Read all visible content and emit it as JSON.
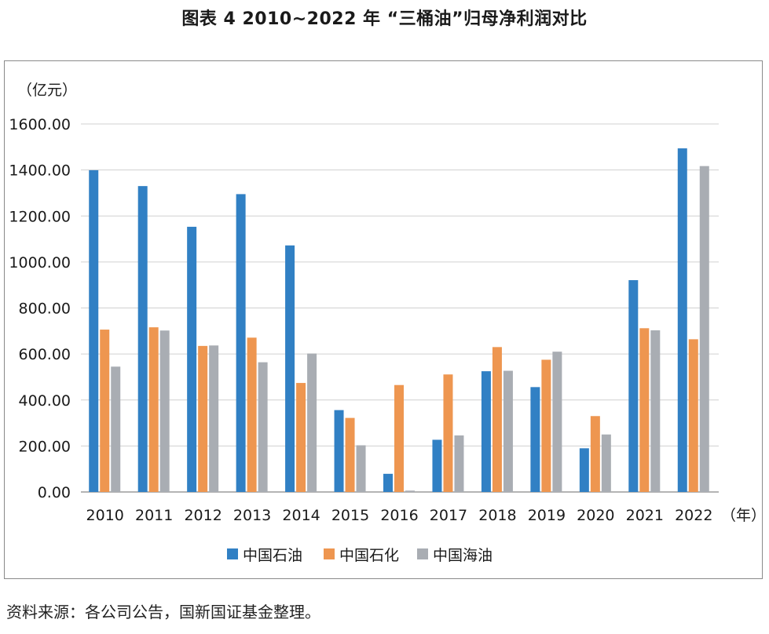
{
  "title": "图表 4  2010~2022 年 “三桶油”归母净利润对比",
  "source": "资料来源：各公司公告，国新国证基金整理。",
  "colors": {
    "series": [
      "#3180C4",
      "#EE9650",
      "#A9ADB3"
    ],
    "grid": "#d0d0d0",
    "axis": "#888888"
  },
  "chart_data": {
    "type": "bar",
    "ylabel": "（亿元）",
    "xlabel": "（年）",
    "ylim": [
      0,
      1600
    ],
    "yticks": [
      0,
      200,
      400,
      600,
      800,
      1000,
      1200,
      1400,
      1600
    ],
    "ytick_labels": [
      "0.00",
      "200.00",
      "400.00",
      "600.00",
      "800.00",
      "1000.00",
      "1200.00",
      "1400.00",
      "1600.00"
    ],
    "grid": true,
    "legend_position": "bottom",
    "categories": [
      "2010",
      "2011",
      "2012",
      "2013",
      "2014",
      "2015",
      "2016",
      "2017",
      "2018",
      "2019",
      "2020",
      "2021",
      "2022"
    ],
    "series": [
      {
        "name": "中国石油",
        "values": [
          1399,
          1330,
          1153,
          1295,
          1072,
          356,
          79,
          227,
          525,
          456,
          190,
          921,
          1494
        ]
      },
      {
        "name": "中国石化",
        "values": [
          706,
          716,
          635,
          671,
          474,
          322,
          465,
          511,
          630,
          575,
          330,
          712,
          664
        ]
      },
      {
        "name": "中国海油",
        "values": [
          545,
          702,
          637,
          564,
          602,
          203,
          6,
          246,
          527,
          610,
          250,
          703,
          1417
        ]
      }
    ]
  }
}
